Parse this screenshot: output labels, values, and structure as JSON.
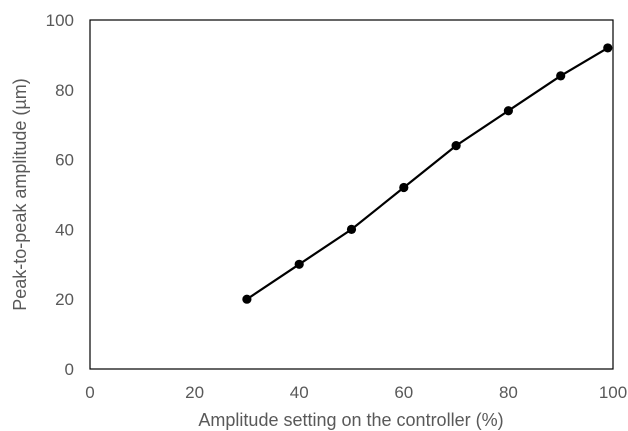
{
  "chart_data": {
    "type": "line",
    "title": "",
    "xlabel": "Amplitude setting on the controller (%)",
    "ylabel": "Peak-to-peak amplitude (µm)",
    "xlim": [
      0,
      100
    ],
    "ylim": [
      0,
      100
    ],
    "xticks": [
      "0",
      "20",
      "40",
      "60",
      "80",
      "100"
    ],
    "yticks": [
      "0",
      "20",
      "40",
      "60",
      "80",
      "100"
    ],
    "grid": false,
    "legend": "none",
    "series": [
      {
        "x": [
          30,
          40,
          50,
          60,
          70,
          80,
          90,
          99
        ],
        "y": [
          20,
          30,
          40,
          52,
          64,
          74,
          84,
          92
        ],
        "color": "#000000",
        "marker": "circle"
      }
    ]
  }
}
